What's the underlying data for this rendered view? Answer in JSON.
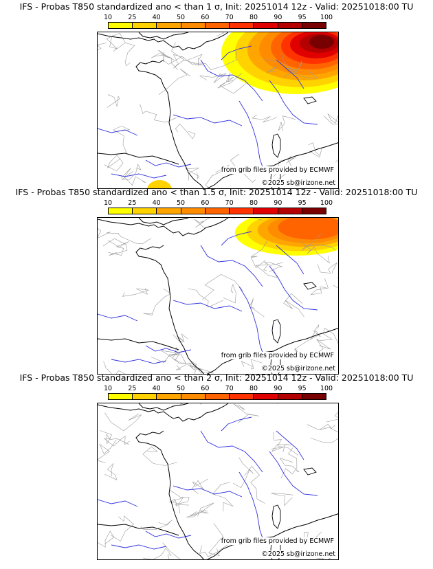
{
  "colorbar": {
    "ticks": [
      "10",
      "25",
      "40",
      "50",
      "60",
      "70",
      "80",
      "90",
      "95",
      "100"
    ],
    "colors": [
      "#ffff00",
      "#ffd200",
      "#ffa500",
      "#ff8c00",
      "#ff6400",
      "#ff3200",
      "#e10000",
      "#b40000",
      "#780000"
    ]
  },
  "panels": [
    {
      "title": "IFS - Probas T850  standardized ano < than 1 σ, Init: 20251014 12z - Valid: 20251018:00 TU",
      "credit": "from grib files provided by ECMWF",
      "copyright": "©2025 sb@irizone.net",
      "intensity": 1.0
    },
    {
      "title": "IFS - Probas T850  standardized ano < than 1.5 σ, Init: 20251014 12z - Valid: 20251018:00 TU",
      "credit": "from grib files provided by ECMWF",
      "copyright": "©2025 sb@irizone.net",
      "intensity": 0.55
    },
    {
      "title": "IFS - Probas T850  standardized ano < than 2 σ, Init: 20251014 12z - Valid: 20251018:00 TU",
      "credit": "from grib files provided by ECMWF",
      "copyright": "©2025 sb@irizone.net",
      "intensity": 0.0
    }
  ]
}
